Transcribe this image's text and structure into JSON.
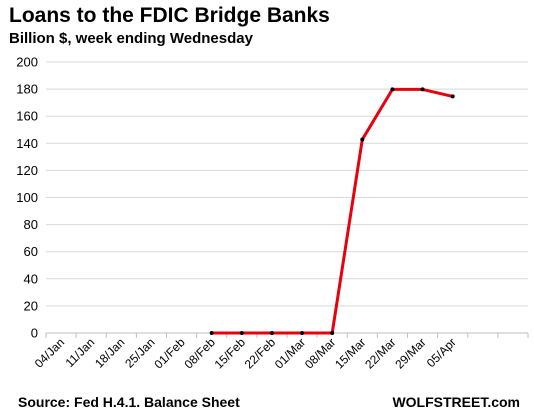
{
  "title": "Loans to the FDIC Bridge Banks",
  "subtitle": "Billion $, week ending Wednesday",
  "source": "Source: Fed H.4.1. Balance Sheet",
  "brand": "WOLFSTREET.com",
  "chart_data": {
    "type": "line",
    "categories": [
      "04/Jan",
      "11/Jan",
      "18/Jan",
      "25/Jan",
      "01/Feb",
      "08/Feb",
      "15/Feb",
      "22/Feb",
      "01/Mar",
      "08/Mar",
      "15/Mar",
      "22/Mar",
      "29/Mar",
      "05/Apr"
    ],
    "series": [
      {
        "values": [
          null,
          null,
          null,
          null,
          null,
          0,
          0,
          0,
          0,
          0,
          142.8,
          179.8,
          179.8,
          174.6
        ]
      }
    ],
    "ylim": [
      0,
      200
    ],
    "yticks": [
      0,
      20,
      40,
      60,
      80,
      100,
      120,
      140,
      160,
      180,
      200
    ],
    "grid": true,
    "legend": "none",
    "colors": {
      "line": "#e8000b",
      "marker": "#000000",
      "grid": "#d9d9d9"
    }
  }
}
